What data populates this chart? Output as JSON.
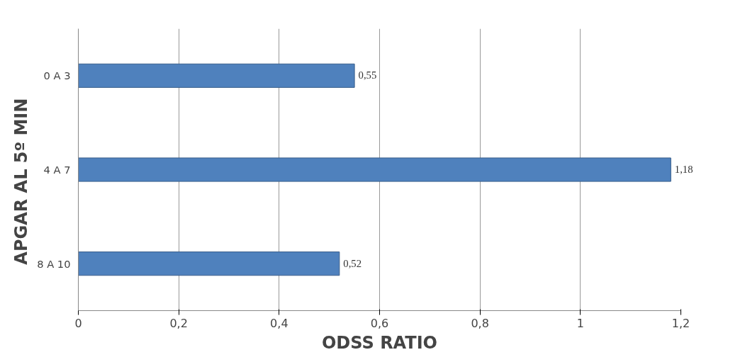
{
  "chart_data": {
    "type": "bar",
    "orientation": "horizontal",
    "xlabel": "ODSS RATIO",
    "ylabel": "APGAR   AL   5º MIN",
    "categories": [
      "0 A 3",
      "4 A 7",
      "8 A 10"
    ],
    "values": [
      0.55,
      1.18,
      0.52
    ],
    "value_labels": [
      "0,55",
      "1,18",
      "0,52"
    ],
    "color": "#4f81bd",
    "xlim": [
      0,
      1.2
    ],
    "xticks": [
      0,
      {
        "value": 0.2,
        "label": "0,2"
      },
      {
        "value": 0.4,
        "label": "0,4"
      },
      {
        "value": 0.6,
        "label": "0,6"
      },
      {
        "value": 0.8,
        "label": "0,8"
      },
      1,
      {
        "value": 1.2,
        "label": "1,2"
      }
    ],
    "grid": "x"
  }
}
